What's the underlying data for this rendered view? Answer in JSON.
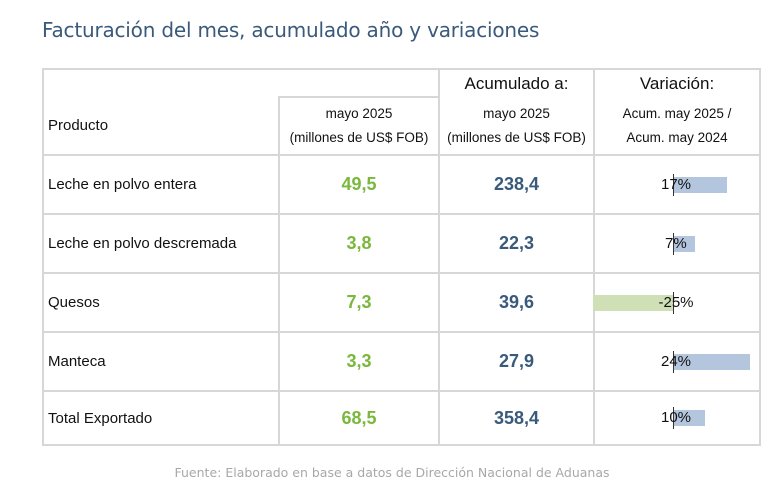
{
  "title": "Facturación del mes, acumulado año y variaciones",
  "header": {
    "acumulado_label": "Acumulado a:",
    "variacion_label": "Variación:",
    "product_label": "Producto",
    "mes_line1": "mayo 2025",
    "mes_line2": "(millones de US$ FOB)",
    "acu_line1": "mayo 2025",
    "acu_line2": "(millones de US$ FOB)",
    "var_line1": "Acum. may 2025 /",
    "var_line2": "Acum. may 2024"
  },
  "rows": [
    {
      "product": "Leche en polvo entera",
      "mes": "49,5",
      "acumulado": "238,4",
      "variacion": "17%",
      "variacion_value": 17
    },
    {
      "product": "Leche en polvo descremada",
      "mes": "3,8",
      "acumulado": "22,3",
      "variacion": "7%",
      "variacion_value": 7
    },
    {
      "product": "Quesos",
      "mes": "7,3",
      "acumulado": "39,6",
      "variacion": "-25%",
      "variacion_value": -25
    },
    {
      "product": "Manteca",
      "mes": "3,3",
      "acumulado": "27,9",
      "variacion": "24%",
      "variacion_value": 24
    },
    {
      "product": "Total Exportado",
      "mes": "68,5",
      "acumulado": "358,4",
      "variacion": "10%",
      "variacion_value": 10
    }
  ],
  "colors": {
    "mes_value": "#7ab83d",
    "acumulado_value": "#3a5a7c",
    "positive_bar": "#b3c6de",
    "negative_bar": "#cfe0b6"
  },
  "source": "Fuente: Elaborado en base a datos de Dirección Nacional de Aduanas"
}
